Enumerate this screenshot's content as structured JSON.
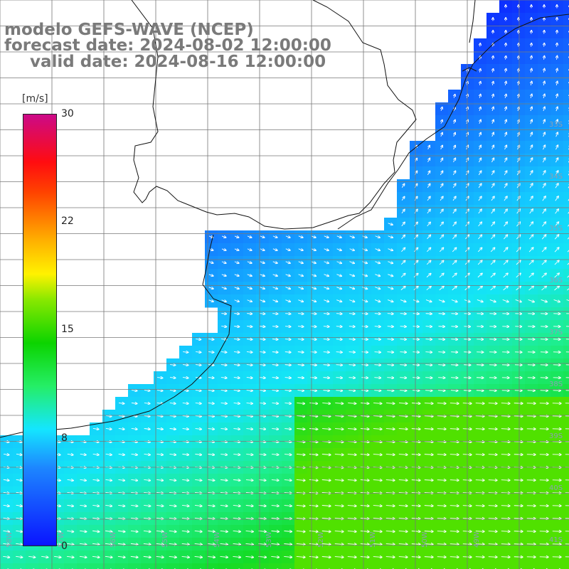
{
  "title": {
    "line1": "modelo GEFS-WAVE (NCEP)",
    "line2": "forecast date: 2024-08-02 12:00:00",
    "line3": "valid date: 2024-08-16 12:00:00"
  },
  "legend": {
    "unit": "[m/s]",
    "ticks": [
      "30",
      "22",
      "15",
      "8",
      "0"
    ],
    "colors": {
      "low": "#0a14ff",
      "mid": "#14e6ff",
      "high": "#cc0a88"
    }
  },
  "map": {
    "variable": "wind speed and direction",
    "min_value": 0,
    "max_value": 30,
    "land_color": "#ffffff",
    "grid": true,
    "lat_labels": [
      "33S",
      "34S",
      "35S",
      "36S",
      "37S",
      "38S",
      "39S",
      "40S",
      "41S"
    ],
    "lon_labels": [
      "58W",
      "57W",
      "56W",
      "55W",
      "54W",
      "53W",
      "52W",
      "51W",
      "50W",
      "49W"
    ]
  }
}
